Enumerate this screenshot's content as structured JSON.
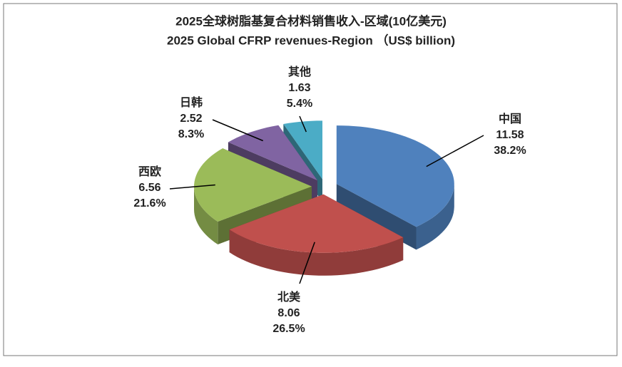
{
  "chart_data": {
    "type": "pie3d",
    "title": "2025全球树脂基复合材料销售收入-区域(10亿美元)",
    "subtitle": "2025 Global CFRP revenues-Region （US$ billion)",
    "categories": [
      "中国",
      "北美",
      "西欧",
      "日韩",
      "其他"
    ],
    "values": [
      11.58,
      8.06,
      6.56,
      2.52,
      1.63
    ],
    "percents": [
      38.2,
      26.5,
      21.6,
      8.3,
      5.4
    ],
    "percent_labels": [
      "38.2%",
      "26.5%",
      "21.6%",
      "8.3%",
      "5.4%"
    ],
    "colors": [
      "#4f81bd",
      "#c0504d",
      "#9bbb59",
      "#8064a2",
      "#4bacc6"
    ]
  }
}
